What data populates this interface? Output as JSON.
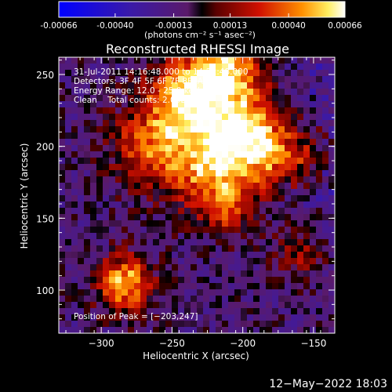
{
  "colorbar": {
    "ticks": [
      "-0.00066",
      "-0.00040",
      "-0.00013",
      "0.00013",
      "0.00040",
      "0.00066"
    ],
    "tick_values": [
      -0.00066,
      -0.0004,
      -0.00013,
      0.00013,
      0.0004,
      0.00066
    ],
    "range": [
      -0.00066,
      0.00066
    ],
    "unit_label": "(photons cm⁻² s⁻¹ asec⁻²)"
  },
  "chart_data": {
    "type": "heatmap",
    "title": "Reconstructed RHESSI Image",
    "xlabel": "Heliocentric X (arcsec)",
    "ylabel": "Heliocentric Y (arcsec)",
    "xlim": [
      -330,
      -135
    ],
    "ylim": [
      70,
      262
    ],
    "x_ticks": [
      -300,
      -250,
      -200,
      -150
    ],
    "x_tick_labels": [
      "−300",
      "−250",
      "−200",
      "−150"
    ],
    "y_ticks": [
      100,
      150,
      200,
      250
    ],
    "y_tick_labels": [
      "100",
      "150",
      "200",
      "250"
    ],
    "annotations": [
      "31-Jul-2011 14:16:48.000 to 14:22:48.000",
      "Detectors: 3F 4F 5F 6F 7F 8F, Att 0",
      "Energy Range: 12.0 - 25.0 keV",
      "Clean    Total counts: 2.05E+04"
    ],
    "peak_label": "Position of Peak = [−203,247]",
    "peak": [
      -203,
      247
    ],
    "grid": false
  },
  "footer": {
    "timestamp": "12−May−2022 18:03"
  }
}
